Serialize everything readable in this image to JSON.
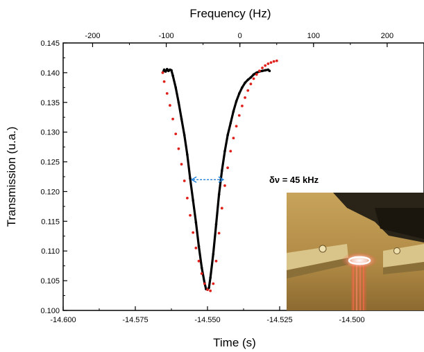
{
  "chart_data": {
    "type": "scatter",
    "xlabel": "Time (s)",
    "ylabel": "Transmission (u.a.)",
    "x2label": "Frequency (Hz)",
    "xlim": [
      -14.6,
      -14.475
    ],
    "ylim": [
      0.1,
      0.145
    ],
    "x2lim": [
      -240,
      250
    ],
    "x_ticks": [
      "-14.600",
      "-14.575",
      "-14.550",
      "-14.525",
      "-14.500"
    ],
    "x_tick_values": [
      -14.6,
      -14.575,
      -14.55,
      -14.525,
      -14.5
    ],
    "y_ticks": [
      "0.100",
      "0.105",
      "0.110",
      "0.115",
      "0.120",
      "0.125",
      "0.130",
      "0.135",
      "0.140",
      "0.145"
    ],
    "y_tick_values": [
      0.1,
      0.105,
      0.11,
      0.115,
      0.12,
      0.125,
      0.13,
      0.135,
      0.14,
      0.145
    ],
    "x2_ticks": [
      "-200",
      "-100",
      "0",
      "100",
      "200"
    ],
    "x2_tick_values": [
      -200,
      -100,
      0,
      100,
      200
    ],
    "grid": false,
    "series": [
      {
        "color": "#000000",
        "style": "dense-line",
        "x": [
          -14.5655,
          -14.565,
          -14.5645,
          -14.564,
          -14.5635,
          -14.563,
          -14.5625,
          -14.562,
          -14.561,
          -14.56,
          -14.559,
          -14.558,
          -14.557,
          -14.556,
          -14.555,
          -14.554,
          -14.553,
          -14.552,
          -14.551,
          -14.5505,
          -14.55,
          -14.5495,
          -14.549,
          -14.548,
          -14.547,
          -14.546,
          -14.545,
          -14.544,
          -14.543,
          -14.542,
          -14.541,
          -14.54,
          -14.539,
          -14.538,
          -14.537,
          -14.536,
          -14.535,
          -14.534,
          -14.533,
          -14.532,
          -14.531,
          -14.53,
          -14.529,
          -14.5285
        ],
        "y": [
          0.14,
          0.1405,
          0.1402,
          0.1406,
          0.1403,
          0.1405,
          0.1404,
          0.1395,
          0.1375,
          0.135,
          0.1322,
          0.1295,
          0.1262,
          0.1222,
          0.1185,
          0.1148,
          0.1108,
          0.1072,
          0.1046,
          0.1036,
          0.1035,
          0.1038,
          0.1055,
          0.1095,
          0.1145,
          0.1195,
          0.1235,
          0.1268,
          0.1295,
          0.1315,
          0.1335,
          0.1352,
          0.1365,
          0.1375,
          0.1383,
          0.1388,
          0.1392,
          0.1397,
          0.14,
          0.1402,
          0.1403,
          0.1404,
          0.1405,
          0.1403
        ]
      },
      {
        "color": "#e0201a",
        "style": "dotted-fit",
        "x": [
          -14.5655,
          -14.565,
          -14.564,
          -14.563,
          -14.562,
          -14.561,
          -14.56,
          -14.559,
          -14.558,
          -14.557,
          -14.556,
          -14.555,
          -14.554,
          -14.553,
          -14.552,
          -14.551,
          -14.55,
          -14.549,
          -14.548,
          -14.547,
          -14.546,
          -14.545,
          -14.544,
          -14.543,
          -14.542,
          -14.541,
          -14.54,
          -14.539,
          -14.538,
          -14.537,
          -14.536,
          -14.535,
          -14.534,
          -14.533,
          -14.532,
          -14.531,
          -14.53,
          -14.529,
          -14.528,
          -14.527,
          -14.526
        ],
        "y": [
          0.14,
          0.1385,
          0.1365,
          0.1345,
          0.1322,
          0.1297,
          0.1272,
          0.1246,
          0.1218,
          0.1189,
          0.116,
          0.1131,
          0.1105,
          0.1083,
          0.1062,
          0.1045,
          0.1035,
          0.1033,
          0.1045,
          0.1083,
          0.113,
          0.1172,
          0.121,
          0.124,
          0.1268,
          0.129,
          0.131,
          0.1328,
          0.1344,
          0.1358,
          0.137,
          0.1381,
          0.139,
          0.1397,
          0.1403,
          0.1408,
          0.1412,
          0.1415,
          0.1417,
          0.1419,
          0.142
        ]
      }
    ],
    "annotation": {
      "text": "δν = 45 kHz",
      "arrow_x": [
        -14.5555,
        -14.5445
      ],
      "arrow_y": 0.122
    },
    "inset": {
      "kind": "photo",
      "description_icon": "microresonator-photo"
    }
  }
}
